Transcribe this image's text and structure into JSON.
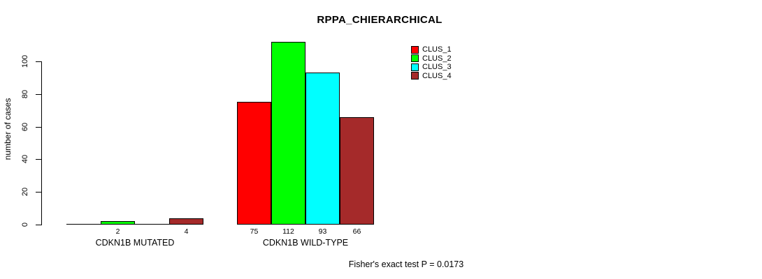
{
  "chart_data": {
    "type": "bar",
    "title": "RPPA_CHIERARCHICAL",
    "ylabel": "number of cases",
    "xlabel": "",
    "categories": [
      "CDKN1B MUTATED",
      "CDKN1B WILD-TYPE"
    ],
    "series": [
      {
        "name": "CLUS_1",
        "color": "#ff0000",
        "values": [
          0,
          75
        ]
      },
      {
        "name": "CLUS_2",
        "color": "#00ff00",
        "values": [
          2,
          112
        ]
      },
      {
        "name": "CLUS_3",
        "color": "#00ffff",
        "values": [
          0,
          93
        ]
      },
      {
        "name": "CLUS_4",
        "color": "#a52a2a",
        "values": [
          4,
          66
        ]
      }
    ],
    "yticks": [
      0,
      20,
      40,
      60,
      80,
      100
    ],
    "ylim": [
      0,
      117
    ],
    "grid": false,
    "legend_position": "top-right",
    "value_labels": "bar values printed under each nonzero bar",
    "annotation": "Fisher's exact test P = 0.0173",
    "axis_color": "#000000",
    "background_color": "#ffffff"
  }
}
